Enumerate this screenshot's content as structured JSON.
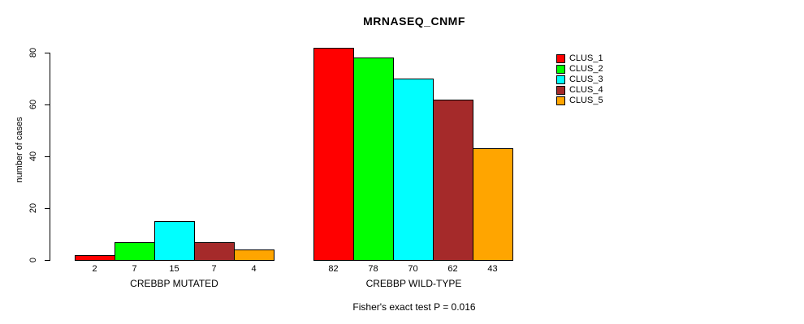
{
  "chart_data": {
    "type": "bar",
    "title": "MRNASEQ_CNMF",
    "ylabel": "number of cases",
    "yticks": [
      0,
      20,
      40,
      60,
      80
    ],
    "ylim": [
      0,
      80
    ],
    "grid": false,
    "legend_position": "right",
    "categories": [
      "CREBBP MUTATED",
      "CREBBP WILD-TYPE"
    ],
    "groups": [
      {
        "label": "CREBBP MUTATED",
        "values": [
          2,
          7,
          15,
          7,
          4
        ]
      },
      {
        "label": "CREBBP WILD-TYPE",
        "values": [
          82,
          78,
          70,
          62,
          43
        ]
      }
    ],
    "series": [
      {
        "name": "CLUS_1",
        "color": "#ff0000",
        "values": [
          2,
          82
        ]
      },
      {
        "name": "CLUS_2",
        "color": "#00ff00",
        "values": [
          7,
          78
        ]
      },
      {
        "name": "CLUS_3",
        "color": "#00ffff",
        "values": [
          15,
          70
        ]
      },
      {
        "name": "CLUS_4",
        "color": "#a52a2a",
        "values": [
          7,
          62
        ]
      },
      {
        "name": "CLUS_5",
        "color": "#ffa500",
        "values": [
          4,
          43
        ]
      }
    ],
    "caption": "Fisher's exact test P = 0.016"
  }
}
